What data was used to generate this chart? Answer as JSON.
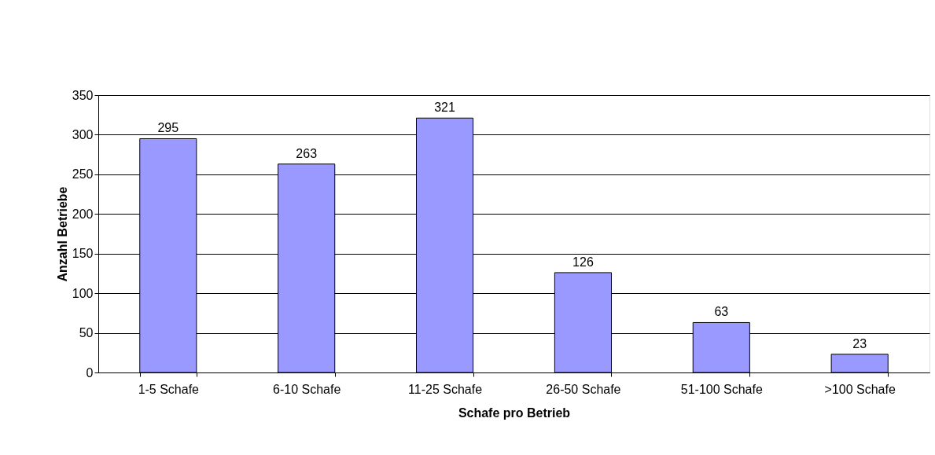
{
  "chart_data": {
    "type": "bar",
    "xlabel": "Schafe pro Betrieb",
    "ylabel": "Anzahl Betriebe",
    "categories": [
      "1-5 Schafe",
      "6-10 Schafe",
      "11-25 Schafe",
      "26-50 Schafe",
      "51-100 Schafe",
      ">100 Schafe"
    ],
    "values": [
      295,
      263,
      321,
      126,
      63,
      23
    ],
    "color": "#9999ff",
    "ylim": [
      0,
      350
    ],
    "yticks": [
      0,
      50,
      100,
      150,
      200,
      250,
      300,
      350
    ],
    "grid": "y",
    "data_labels": true
  }
}
